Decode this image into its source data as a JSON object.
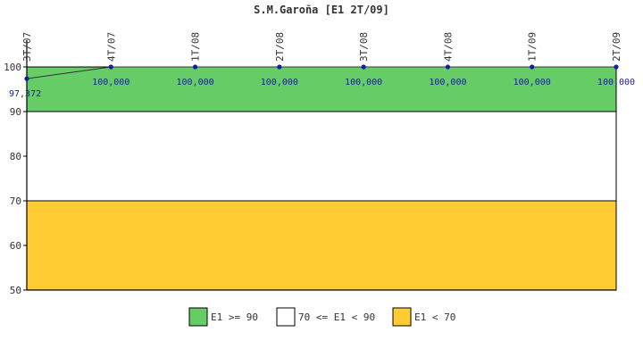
{
  "chart_data": {
    "type": "line",
    "title": "S.M.Garoña [E1 2T/09]",
    "xlabel": "",
    "ylabel": "",
    "ylim": [
      50,
      100
    ],
    "yticks": [
      50,
      60,
      70,
      80,
      90,
      100
    ],
    "categories": [
      "3T/07",
      "4T/07",
      "1T/08",
      "2T/08",
      "3T/08",
      "4T/08",
      "1T/09",
      "2T/09"
    ],
    "series": [
      {
        "values": [
          97.372,
          100,
          100,
          100,
          100,
          100,
          100,
          100
        ],
        "labels": [
          "97,372",
          "100,000",
          "100,000",
          "100,000",
          "100,000",
          "100,000",
          "100,000",
          "100,000"
        ],
        "color": "#1a1aa6"
      }
    ],
    "bands": [
      {
        "label": "E1 >= 90",
        "from": 90,
        "to": 100,
        "color": "#66cc66"
      },
      {
        "label": "70 <= E1 < 90",
        "from": 70,
        "to": 90,
        "color": "#ffffff"
      },
      {
        "label": "E1 < 70",
        "from": 50,
        "to": 70,
        "color": "#ffcc33"
      }
    ],
    "legend_position": "bottom-center",
    "grid": false
  }
}
